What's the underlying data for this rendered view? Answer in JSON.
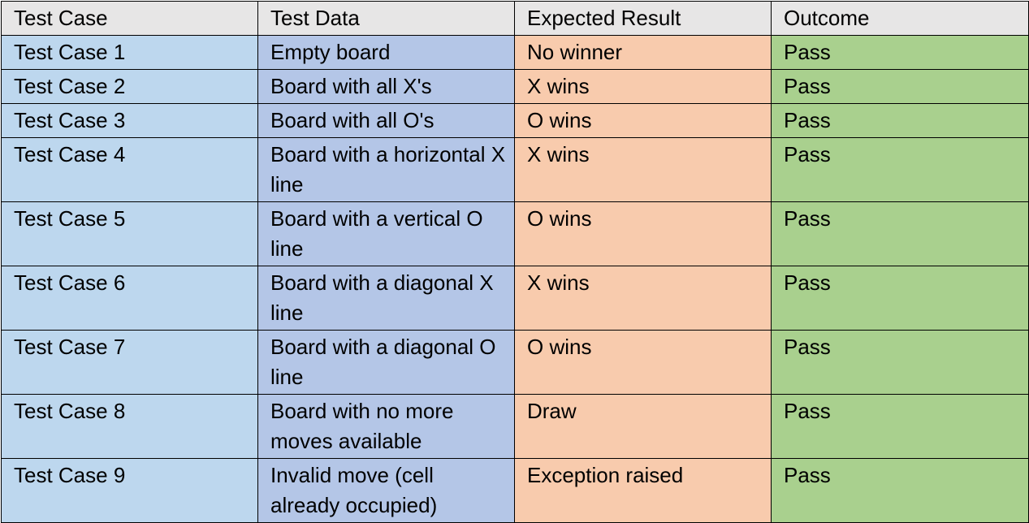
{
  "table": {
    "headers": [
      "Test Case",
      "Test Data",
      "Expected Result",
      "Outcome"
    ],
    "rows": [
      {
        "case": "Test Case 1",
        "data": "Empty board",
        "expected": "No winner",
        "outcome": "Pass"
      },
      {
        "case": "Test Case 2",
        "data": "Board with all X's",
        "expected": "X wins",
        "outcome": "Pass"
      },
      {
        "case": "Test Case 3",
        "data": "Board with all O's",
        "expected": "O wins",
        "outcome": "Pass"
      },
      {
        "case": "Test Case 4",
        "data": "Board with a horizontal X line",
        "expected": "X wins",
        "outcome": "Pass"
      },
      {
        "case": "Test Case 5",
        "data": "Board with a vertical O line",
        "expected": "O wins",
        "outcome": "Pass"
      },
      {
        "case": "Test Case 6",
        "data": "Board with a diagonal X line",
        "expected": "X wins",
        "outcome": "Pass"
      },
      {
        "case": "Test Case 7",
        "data": "Board with a diagonal O line",
        "expected": "O wins",
        "outcome": "Pass"
      },
      {
        "case": "Test Case 8",
        "data": "Board with no more moves available",
        "expected": "Draw",
        "outcome": "Pass"
      },
      {
        "case": "Test Case 9",
        "data": "Invalid move (cell already occupied)",
        "expected": "Exception raised",
        "outcome": "Pass"
      }
    ]
  },
  "colors": {
    "header": "#e7e6e6",
    "test_case_column": "#bdd7ee",
    "test_data_column": "#b4c6e7",
    "expected_result_column": "#f8cbad",
    "outcome_column": "#a9d08e"
  }
}
